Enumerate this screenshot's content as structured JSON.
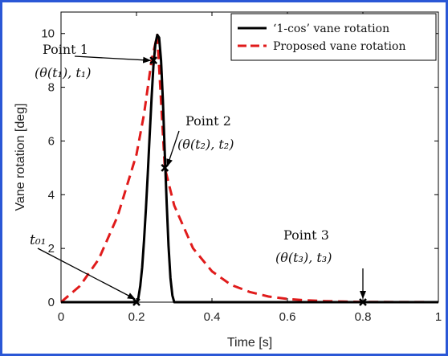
{
  "chart_data": {
    "type": "line",
    "xlabel": "Time [s]",
    "ylabel": "Vane rotation [deg]",
    "xlim": [
      0,
      1
    ],
    "ylim": [
      0,
      10.8
    ],
    "xticks": [
      0,
      0.2,
      0.4,
      0.6,
      0.8,
      1
    ],
    "xtick_labels": [
      "0",
      "0.2",
      "0.4",
      "0.6",
      "0.8",
      "1"
    ],
    "yticks": [
      0,
      2,
      4,
      6,
      8,
      10
    ],
    "ytick_labels": [
      "0",
      "2",
      "4",
      "6",
      "8",
      "10"
    ],
    "grid": false,
    "legend_position": "top-right",
    "series": [
      {
        "name": "‘1-cos’ vane rotation",
        "color": "#000000",
        "style": "solid",
        "x": [
          0,
          0.19,
          0.195,
          0.2,
          0.205,
          0.21,
          0.215,
          0.22,
          0.225,
          0.23,
          0.235,
          0.24,
          0.245,
          0.25,
          0.255,
          0.26,
          0.265,
          0.27,
          0.275,
          0.28,
          0.285,
          0.29,
          0.295,
          0.3,
          1
        ],
        "y": [
          0,
          0,
          0,
          0,
          0.15,
          0.6,
          1.3,
          2.3,
          3.5,
          4.8,
          6.2,
          7.6,
          8.8,
          9.6,
          9.95,
          9.85,
          9.0,
          7.5,
          5.5,
          3.7,
          2.1,
          0.9,
          0.25,
          0,
          0
        ]
      },
      {
        "name": "Proposed vane rotation",
        "color": "#e01b1b",
        "style": "dashed",
        "x": [
          0,
          0.05,
          0.1,
          0.15,
          0.2,
          0.22,
          0.24,
          0.255,
          0.275,
          0.3,
          0.35,
          0.4,
          0.45,
          0.5,
          0.55,
          0.6,
          0.65,
          0.7,
          0.75,
          0.8,
          0.85,
          0.9,
          0.95,
          1
        ],
        "y": [
          0,
          0.6,
          1.6,
          3.2,
          5.5,
          7.0,
          9.0,
          9.95,
          5.0,
          3.6,
          2.0,
          1.15,
          0.65,
          0.38,
          0.21,
          0.12,
          0.07,
          0.04,
          0.02,
          0.01,
          0.005,
          0.003,
          0.002,
          0
        ]
      }
    ],
    "markers": [
      {
        "x": 0.2,
        "y": 0
      },
      {
        "x": 0.245,
        "y": 9
      },
      {
        "x": 0.275,
        "y": 5
      },
      {
        "x": 0.8,
        "y": 0
      }
    ],
    "annotations": [
      {
        "id": "point1",
        "title": "Point 1",
        "label": "(θ(t₁), t₁)"
      },
      {
        "id": "point2",
        "title": "Point 2",
        "label": "(θ(t₂), t₂)"
      },
      {
        "id": "point3",
        "title": "Point 3",
        "label": "(θ(t₃), t₃)"
      },
      {
        "id": "t01",
        "title": "",
        "label": "t₀₁"
      }
    ]
  }
}
